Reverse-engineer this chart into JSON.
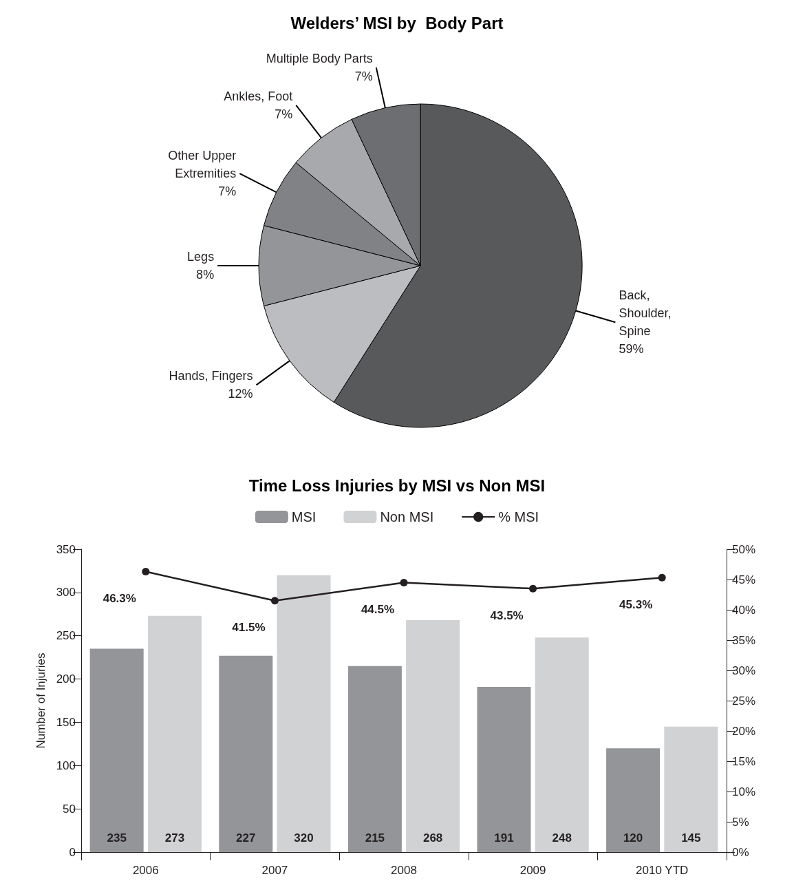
{
  "chart_data": [
    {
      "type": "pie",
      "title": "Welders’ MSI by  Body Part",
      "categories": [
        "Back,\nShoulder,\nSpine",
        "Hands, Fingers",
        "Legs",
        "Other Upper\nExtremities",
        "Ankles, Foot",
        "Multiple Body Parts"
      ],
      "values": [
        59,
        12,
        8,
        7,
        7,
        7
      ],
      "value_labels": [
        "59%",
        "12%",
        "8%",
        "7%",
        "7%",
        "7%"
      ],
      "colors": [
        "#58595b",
        "#bcbdc0",
        "#939598",
        "#808285",
        "#a7a9ac",
        "#6d6e71"
      ],
      "legend": false
    },
    {
      "type": "bar",
      "title": "Time Loss Injuries by MSI vs Non MSI",
      "ylabel": "Number of Injuries",
      "categories": [
        "2006",
        "2007",
        "2008",
        "2009",
        "2010 YTD"
      ],
      "series": [
        {
          "name": "MSI",
          "color": "#939598",
          "values": [
            235,
            227,
            215,
            191,
            120
          ],
          "value_labels": [
            "235",
            "227",
            "215",
            "191",
            "120"
          ]
        },
        {
          "name": "Non MSI",
          "color": "#d1d2d4",
          "values": [
            273,
            320,
            268,
            248,
            145
          ],
          "value_labels": [
            "273",
            "320",
            "268",
            "248",
            "145"
          ]
        },
        {
          "name": "% MSI",
          "type": "line",
          "axis": "y2",
          "color": "#231f20",
          "values": [
            46.3,
            41.5,
            44.5,
            43.5,
            45.3
          ],
          "value_labels": [
            "46.3%",
            "41.5%",
            "44.5%",
            "43.5%",
            "45.3%"
          ]
        }
      ],
      "ylim": [
        0,
        350
      ],
      "yticks": [
        0,
        50,
        100,
        150,
        200,
        250,
        300,
        350
      ],
      "y2lim": [
        0,
        50
      ],
      "y2ticks": [
        {
          "value": 0,
          "label": "0%"
        },
        {
          "value": 5,
          "label": "5%"
        },
        {
          "value": 10,
          "label": "10%"
        },
        {
          "value": 15,
          "label": "15%"
        },
        {
          "value": 20,
          "label": "20%"
        },
        {
          "value": 25,
          "label": "25%"
        },
        {
          "value": 30,
          "label": "30%"
        },
        {
          "value": 35,
          "label": "35%"
        },
        {
          "value": 40,
          "label": "40%"
        },
        {
          "value": 45,
          "label": "45%"
        },
        {
          "value": 50,
          "label": "50%"
        }
      ],
      "marker": "circle",
      "grid": false,
      "legend": "top"
    }
  ]
}
